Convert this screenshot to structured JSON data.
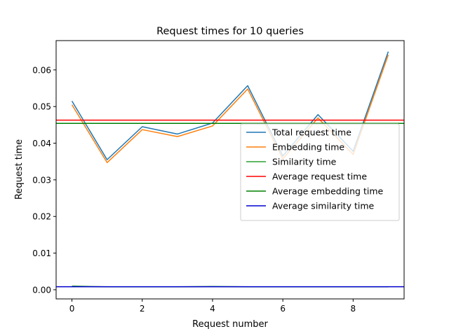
{
  "chart_data": {
    "type": "line",
    "title": "Request times for 10 queries",
    "xlabel": "Request number",
    "ylabel": "Request time",
    "xlim": [
      -0.45,
      9.45
    ],
    "ylim": [
      -0.0025,
      0.068
    ],
    "xticks": [
      0,
      2,
      4,
      6,
      8
    ],
    "xtick_labels": [
      "0",
      "2",
      "4",
      "6",
      "8"
    ],
    "yticks": [
      0.0,
      0.01,
      0.02,
      0.03,
      0.04,
      0.05,
      0.06
    ],
    "ytick_labels": [
      "0.00",
      "0.01",
      "0.02",
      "0.03",
      "0.04",
      "0.05",
      "0.06"
    ],
    "grid": false,
    "legend_position": "center-right",
    "x": [
      0,
      1,
      2,
      3,
      4,
      5,
      6,
      7,
      8,
      9
    ],
    "series": [
      {
        "name": "Total request time",
        "color": "#1f77b4",
        "kind": "line",
        "values": [
          0.0515,
          0.0355,
          0.0445,
          0.0425,
          0.0455,
          0.0557,
          0.0365,
          0.0478,
          0.0378,
          0.065
        ]
      },
      {
        "name": "Embedding time",
        "color": "#ff7f0e",
        "kind": "line",
        "values": [
          0.0505,
          0.0347,
          0.0437,
          0.0418,
          0.0447,
          0.0548,
          0.0357,
          0.0469,
          0.0369,
          0.0641
        ]
      },
      {
        "name": "Similarity time",
        "color": "#2ca02c",
        "kind": "line",
        "values": [
          0.001,
          0.0008,
          0.0008,
          0.0008,
          0.0009,
          0.0008,
          0.0008,
          0.0008,
          0.0008,
          0.0008
        ]
      },
      {
        "name": "Average request time",
        "color": "#ff0000",
        "kind": "hline",
        "value": 0.0463
      },
      {
        "name": "Average embedding time",
        "color": "#008000",
        "kind": "hline",
        "value": 0.0454
      },
      {
        "name": "Average similarity time",
        "color": "#0000cd",
        "kind": "hline",
        "value": 0.00083
      }
    ]
  }
}
